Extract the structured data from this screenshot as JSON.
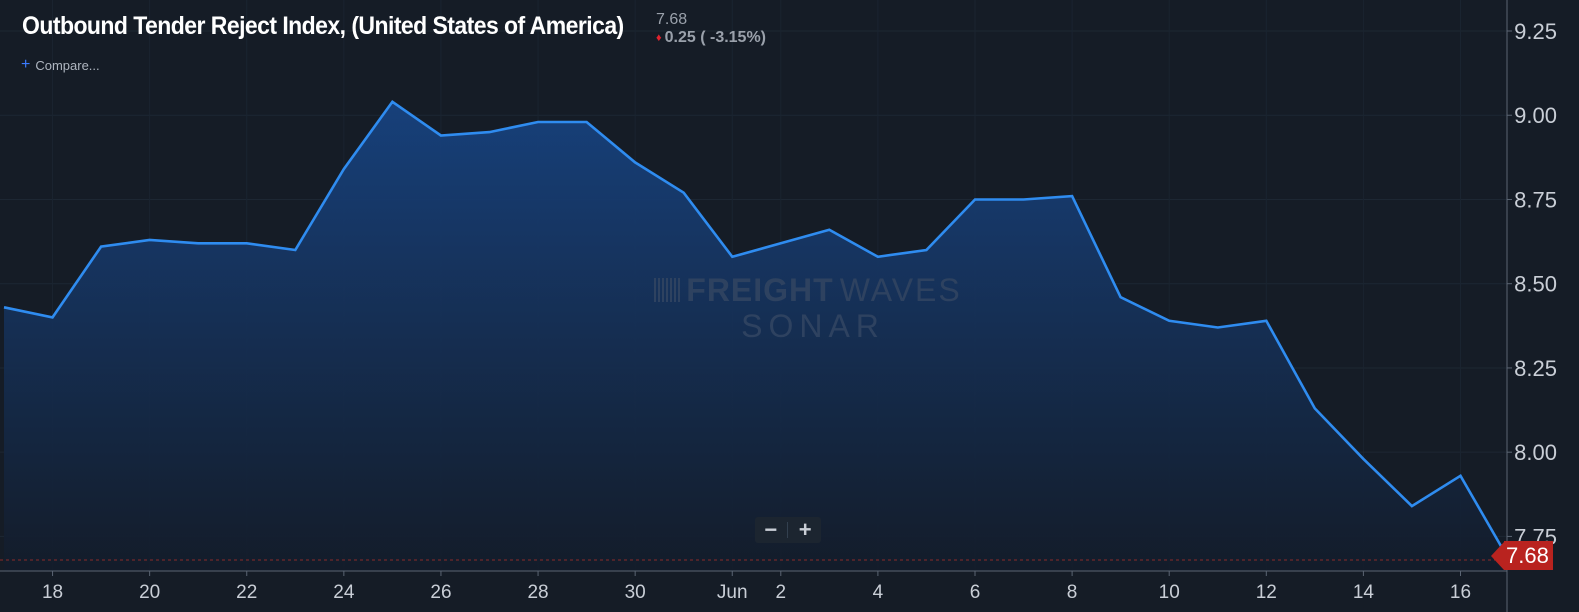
{
  "header": {
    "title": "Outbound Tender Reject Index, (United States of America)",
    "last_value": "7.68",
    "change": "0.25 ( -3.15%)",
    "change_direction_icon": "down-triangle-icon",
    "compare_label": "Compare..."
  },
  "zoom": {
    "zoom_out_label": "−",
    "zoom_in_label": "+"
  },
  "watermark": {
    "line1_bold": "FREIGHT",
    "line1_light": "WAVES",
    "line2": "SONAR"
  },
  "price_flag": "7.68",
  "colors": {
    "background": "#151c26",
    "line": "#2f8cf0",
    "fill_top": "#17427f",
    "fill_bottom": "#131c2a",
    "axis_text": "#c9ced6",
    "price_flag": "#b9231f",
    "down": "#e0232e"
  },
  "chart_data": {
    "type": "area",
    "x": [
      "2024-05-17",
      "2024-05-18",
      "2024-05-19",
      "2024-05-20",
      "2024-05-21",
      "2024-05-22",
      "2024-05-23",
      "2024-05-24",
      "2024-05-25",
      "2024-05-26",
      "2024-05-27",
      "2024-05-28",
      "2024-05-29",
      "2024-05-30",
      "2024-05-31",
      "2024-06-01",
      "2024-06-02",
      "2024-06-03",
      "2024-06-04",
      "2024-06-05",
      "2024-06-06",
      "2024-06-07",
      "2024-06-08",
      "2024-06-09",
      "2024-06-10",
      "2024-06-11",
      "2024-06-12",
      "2024-06-13",
      "2024-06-14",
      "2024-06-15",
      "2024-06-16",
      "2024-06-17"
    ],
    "series": [
      {
        "values": [
          8.43,
          8.4,
          8.61,
          8.63,
          8.62,
          8.62,
          8.6,
          8.84,
          9.04,
          8.94,
          8.95,
          8.98,
          8.98,
          8.86,
          8.77,
          8.58,
          8.62,
          8.66,
          8.58,
          8.6,
          8.75,
          8.75,
          8.76,
          8.46,
          8.39,
          8.37,
          8.39,
          8.13,
          7.98,
          7.84,
          7.93,
          7.68
        ]
      }
    ],
    "x_tick_labels": [
      "18",
      "20",
      "22",
      "24",
      "26",
      "28",
      "30",
      "Jun",
      "2",
      "4",
      "6",
      "8",
      "10",
      "12",
      "14",
      "16"
    ],
    "x_tick_dates": [
      "2024-05-18",
      "2024-05-20",
      "2024-05-22",
      "2024-05-24",
      "2024-05-26",
      "2024-05-28",
      "2024-05-30",
      "2024-06-01",
      "2024-06-02",
      "2024-06-04",
      "2024-06-06",
      "2024-06-08",
      "2024-06-10",
      "2024-06-12",
      "2024-06-14",
      "2024-06-16"
    ],
    "y_tick_labels": [
      "7.75",
      "8.00",
      "8.25",
      "8.50",
      "8.75",
      "9.00",
      "9.25"
    ],
    "y_ticks": [
      7.75,
      8.0,
      8.25,
      8.5,
      8.75,
      9.0,
      9.25
    ],
    "ylim": [
      7.68,
      9.25
    ],
    "last_value_line": 7.68,
    "grid": true,
    "y_axis_position": "right"
  }
}
